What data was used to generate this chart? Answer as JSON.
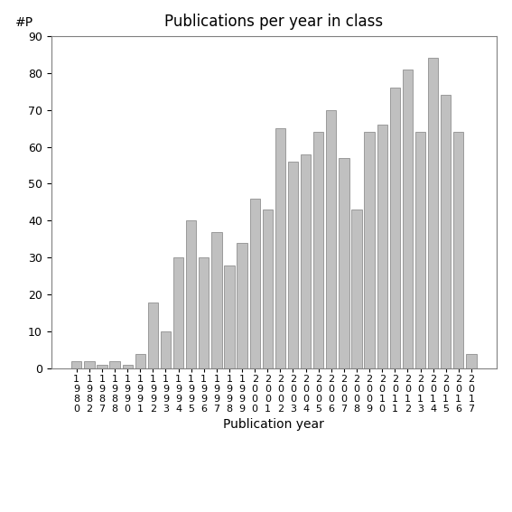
{
  "title": "Publications per year in class",
  "xlabel": "Publication year",
  "ylabel": "#P",
  "years": [
    "1980",
    "1982",
    "1987",
    "1988",
    "1990",
    "1991",
    "1992",
    "1993",
    "1994",
    "1995",
    "1996",
    "1997",
    "1998",
    "1999",
    "2000",
    "2001",
    "2002",
    "2003",
    "2004",
    "2005",
    "2006",
    "2007",
    "2008",
    "2009",
    "2010",
    "2011",
    "2012",
    "2013",
    "2014",
    "2015",
    "2016",
    "2017"
  ],
  "values": [
    2,
    2,
    1,
    2,
    1,
    4,
    18,
    10,
    30,
    40,
    30,
    37,
    28,
    34,
    46,
    43,
    65,
    56,
    58,
    64,
    70,
    57,
    43,
    64,
    66,
    76,
    81,
    64,
    84,
    74,
    64,
    4
  ],
  "bar_color": "#c0c0c0",
  "bar_edge_color": "#808080",
  "ylim": [
    0,
    90
  ],
  "yticks": [
    0,
    10,
    20,
    30,
    40,
    50,
    60,
    70,
    80,
    90
  ],
  "background_color": "#ffffff",
  "title_fontsize": 12,
  "axis_label_fontsize": 10,
  "tick_fontsize": 9
}
